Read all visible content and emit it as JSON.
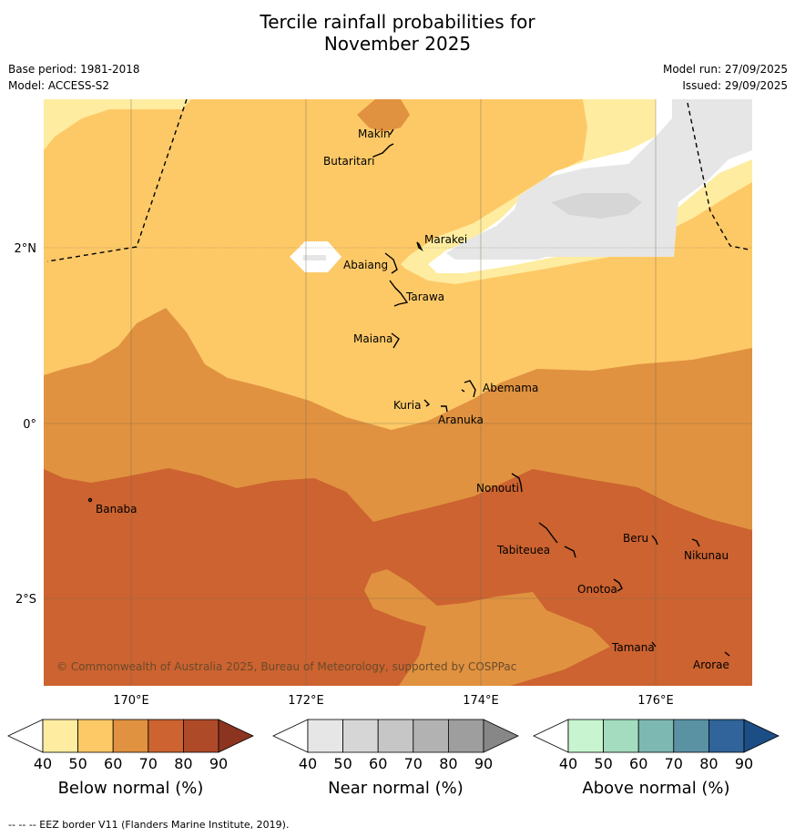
{
  "title_line1": "Tercile rainfall probabilities for",
  "title_line2": "November 2025",
  "meta": {
    "base_period": "Base period: 1981-2018",
    "model": "Model: ACCESS-S2",
    "model_run": "Model run: 27/09/2025",
    "issued": "Issued: 29/09/2025"
  },
  "axes": {
    "lon_labels": [
      "170°E",
      "172°E",
      "174°E",
      "176°E"
    ],
    "lat_labels": [
      "2°N",
      "0°",
      "2°S"
    ]
  },
  "places": [
    "Makin",
    "Butaritari",
    "Marakei",
    "Abaiang",
    "Tarawa",
    "Maiana",
    "Abemama",
    "Kuria",
    "Aranuka",
    "Nonouti",
    "Banaba",
    "Tabiteuea",
    "Beru",
    "Nikunau",
    "Onotoa",
    "Tamana",
    "Arorae"
  ],
  "copyright": "© Commonwealth of Australia 2025, Bureau of Meteorology, supported by COSPPac",
  "legends": [
    {
      "title": "Below normal (%)",
      "ticks": [
        "40",
        "50",
        "60",
        "70",
        "80",
        "90"
      ],
      "colors": [
        "#ffffff",
        "#feeca0",
        "#fdc967",
        "#e09240",
        "#cc6330",
        "#ae4a28",
        "#8c3420"
      ]
    },
    {
      "title": "Near normal (%)",
      "ticks": [
        "40",
        "50",
        "60",
        "70",
        "80",
        "90"
      ],
      "colors": [
        "#ffffff",
        "#e6e6e6",
        "#d6d6d6",
        "#c6c6c6",
        "#b2b2b2",
        "#9e9e9e",
        "#878787"
      ]
    },
    {
      "title": "Above normal (%)",
      "ticks": [
        "40",
        "50",
        "60",
        "70",
        "80",
        "90"
      ],
      "colors": [
        "#ffffff",
        "#c8f4d0",
        "#a4dcc0",
        "#7eb8b2",
        "#5a92a4",
        "#30649a",
        "#1c4e86"
      ]
    }
  ],
  "footnote": "--  --  -- EEZ border V11 (Flanders Marine Institute, 2019)."
}
